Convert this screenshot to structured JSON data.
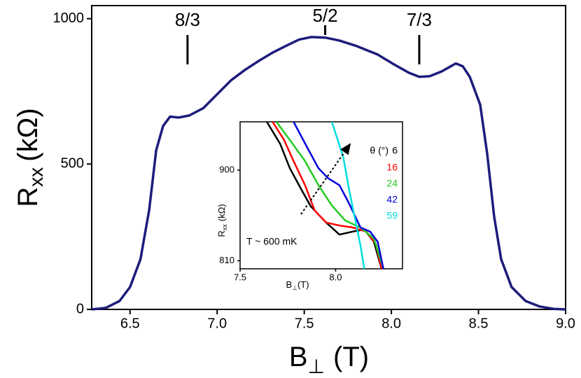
{
  "chart_data": [
    {
      "type": "line",
      "xlabel": {
        "main": "B",
        "sub": "⊥",
        "unit": "(T)"
      },
      "ylabel": {
        "main": "R",
        "sub": "xx",
        "unit": "(kΩ)"
      },
      "x": [
        6.28,
        6.36,
        6.44,
        6.5,
        6.56,
        6.61,
        6.65,
        6.69,
        6.73,
        6.78,
        6.84,
        6.92,
        7.0,
        7.08,
        7.16,
        7.24,
        7.32,
        7.4,
        7.47,
        7.54,
        7.62,
        7.7,
        7.8,
        7.92,
        8.02,
        8.1,
        8.16,
        8.22,
        8.29,
        8.34,
        8.37,
        8.41,
        8.45,
        8.51,
        8.55,
        8.59,
        8.63,
        8.69,
        8.77,
        8.85,
        8.93,
        9.0
      ],
      "values": [
        0,
        5,
        29,
        77,
        173,
        342,
        547,
        631,
        663,
        660,
        667,
        692,
        740,
        788,
        824,
        855,
        884,
        908,
        928,
        937,
        935,
        925,
        906,
        877,
        841,
        814,
        800,
        802,
        819,
        836,
        846,
        836,
        800,
        704,
        535,
        318,
        173,
        77,
        29,
        10,
        2,
        0
      ],
      "color": "#1c1c7c",
      "xlim": [
        6.28,
        9.0
      ],
      "ylim": [
        0,
        1045
      ],
      "xticks": [
        6.5,
        {
          "value": 7,
          "label": "7.0"
        },
        7.5,
        {
          "value": 8,
          "label": "8.0"
        },
        8.5,
        {
          "value": 9,
          "label": "9.0"
        }
      ],
      "yticks": [
        0,
        500,
        1000
      ],
      "annotations": [
        {
          "label": "8/3",
          "x": 6.83
        },
        {
          "label": "5/2",
          "x": 7.62
        },
        {
          "label": "7/3",
          "x": 8.16
        }
      ]
    },
    {
      "type": "line",
      "xlabel": {
        "main": "B",
        "sub": "⊥",
        "unit": "(T)"
      },
      "ylabel": {
        "main": "R",
        "sub": "xx",
        "unit": "(kΩ)"
      },
      "legend_title": "θ (°)",
      "annotation": "T ~ 600 mK",
      "xlim": [
        7.5,
        8.35
      ],
      "ylim": [
        802,
        948
      ],
      "xticks": [
        7.5,
        {
          "value": 8,
          "label": "8.0"
        }
      ],
      "yticks": [
        810,
        900
      ],
      "series": [
        {
          "name": "6",
          "color": "#000000",
          "x": [
            7.64,
            7.71,
            7.76,
            7.82,
            7.87,
            7.95,
            8.02,
            8.09,
            8.15,
            8.2,
            8.24
          ],
          "values": [
            948,
            926,
            902,
            881,
            864,
            848,
            836,
            839,
            841,
            829,
            802
          ]
        },
        {
          "name": "16",
          "color": "#ff0000",
          "x": [
            7.67,
            7.73,
            7.78,
            7.84,
            7.89,
            7.95,
            8.02,
            8.09,
            8.16,
            8.21,
            8.24
          ],
          "values": [
            948,
            930,
            909,
            885,
            860,
            848,
            845,
            843,
            839,
            827,
            802
          ]
        },
        {
          "name": "24",
          "color": "#22cc22",
          "x": [
            7.69,
            7.76,
            7.84,
            7.91,
            7.98,
            8.05,
            8.13,
            8.2,
            8.25
          ],
          "values": [
            948,
            930,
            909,
            885,
            865,
            850,
            843,
            832,
            802
          ]
        },
        {
          "name": "42",
          "color": "#0000dd",
          "x": [
            7.78,
            7.85,
            7.91,
            7.96,
            8.02,
            8.07,
            8.13,
            8.18,
            8.22,
            8.25
          ],
          "values": [
            948,
            923,
            902,
            892,
            885,
            867,
            843,
            839,
            829,
            802
          ]
        },
        {
          "name": "59",
          "color": "#00dddd",
          "x": [
            7.98,
            8.04,
            8.07,
            8.1,
            8.13,
            8.15
          ],
          "values": [
            948,
            913,
            881,
            853,
            825,
            802
          ]
        }
      ]
    }
  ]
}
